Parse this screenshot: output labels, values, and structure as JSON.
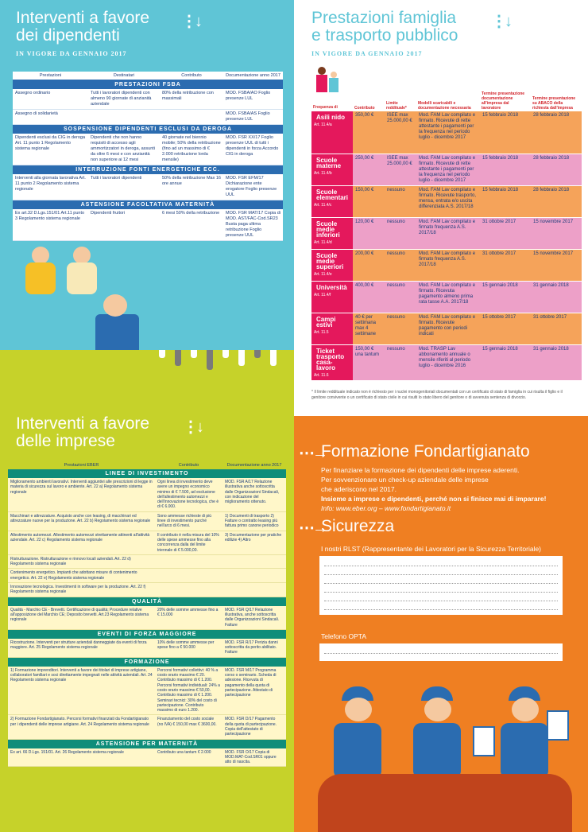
{
  "q1": {
    "title_l1": "Interventi a favore",
    "title_l2": "dei dipendenti",
    "subtitle": "IN VIGORE DA GENNAIO 2017",
    "headers": [
      "Prestazioni",
      "Destinatari",
      "Contributo",
      "Documentazione anno 2017"
    ],
    "sections": [
      {
        "name": "PRESTAZIONI FSBA",
        "rows": [
          [
            "Assegno ordinario",
            "Tutti i lavoratori dipendenti con almeno 90 giornate di anzianità aziendale",
            "80% della retribuzione con massimali",
            "MOD. FSBA/AO Foglio presenze LUL"
          ],
          [
            "Assegno di solidarietà",
            "",
            "",
            "MOD. FSBA/AS Foglio presenze LUL"
          ]
        ]
      },
      {
        "name": "SOSPENSIONE DIPENDENTI ESCLUSI DA DEROGA",
        "rows": [
          [
            "Dipendenti esclusi da CIG in deroga Art. 11 punto 1 Regolamento sistema regionale",
            "Dipendenti che non hanno requisiti di accesso agli ammortizzatori in deroga, assunti da oltre 6 mesi e con anzianità non superiore ai 12 mesi",
            "40 giornate nel biennio mobile; 50% della retribuzione (fino ad un massimo di € 2.000 retribuzione lorda mensile)",
            "MOD. FSR XX/17 Foglio presenze UUL di tutti i dipendenti in forza Accordo CIG in deroga"
          ]
        ]
      },
      {
        "name": "INTERRUZIONE FONTI ENERGETICHE ECC.",
        "rows": [
          [
            "Interventi alla giornata lavorativa Art. 11 punto 2 Regolamento sistema regionale",
            "Tutti i lavoratori dipendenti",
            "50% della retribuzione Max 16 ore annue",
            "MOD. FSR EFM/17 Dichiarazione ente erogatore Foglio presenze UUL"
          ]
        ]
      },
      {
        "name": "ASTENSIONE FACOLTATIVA MATERNITÀ",
        "rows": [
          [
            "Ex art.32 D.Lgs.151/01 Art.11 punto 3 Regolamento sistema regionale",
            "Dipendenti fruitori",
            "6 mesi 50% della retribuzione",
            "MOD. FSR MAT/17 Copia di MOD. AST/FAC-Cod.SR23 Busta paga ultima retribuzione Foglio presenze UUL"
          ]
        ]
      }
    ]
  },
  "q2": {
    "title_l1": "Prestazioni famiglia",
    "title_l2": "e trasporto pubblico",
    "subtitle": "IN VIGORE DA GENNAIO 2017",
    "headers": [
      "Frequenza di",
      "Contributo",
      "Limite reddituale*",
      "Modelli scaricabili e documentazione necessaria",
      "Termine presentazione documentazione all'impresa dal lavoratore",
      "Termine presentazione su ABACO della richiesta dall'impresa"
    ],
    "rows": [
      {
        "cat": "Asili nido",
        "art": "Art. 11.4/a",
        "contrib": "350,00 €",
        "limite": "ISEE max 25.000,00 €",
        "doc": "Mod. FAM Lav compilato e firmato. Ricevute di rette attestante i pagamenti per la frequenza nel periodo luglio - dicembre 2017",
        "t1": "15 febbraio 2018",
        "t2": "28 febbraio 2018",
        "color": "#e4185c",
        "bg": "#f5a35a"
      },
      {
        "cat": "Scuole materne",
        "art": "Art. 11.4/b",
        "contrib": "250,00 €",
        "limite": "ISEE max 25.000,00 €",
        "doc": "Mod. FAM Lav compilato e firmato. Ricevute di rette attestante i pagamenti per la frequenza nel periodo luglio - dicembre 2017",
        "t1": "15 febbraio 2018",
        "t2": "28 febbraio 2018",
        "color": "#e4185c",
        "bg": "#eda0c8"
      },
      {
        "cat": "Scuole elementari",
        "art": "Art. 11.4/c",
        "contrib": "150,00 €",
        "limite": "nessuno",
        "doc": "Mod. FAM Lav compilato e firmato. Ricevute trasporto, mensa, entrata e/o uscita differenziata A.S. 2017/18",
        "t1": "15 febbraio 2018",
        "t2": "28 febbraio 2018",
        "color": "#e4185c",
        "bg": "#f5a35a"
      },
      {
        "cat": "Scuole medie inferiori",
        "art": "Art. 11.4/d",
        "contrib": "120,00 €",
        "limite": "nessuno",
        "doc": "Mod. FAM Lav compilato e firmato frequenza A.S. 2017/18",
        "t1": "31 ottobre 2017",
        "t2": "15 novembre 2017",
        "color": "#e4185c",
        "bg": "#eda0c8"
      },
      {
        "cat": "Scuole medie superiori",
        "art": "Art. 11.4/e",
        "contrib": "200,00 €",
        "limite": "nessuno",
        "doc": "Mod. FAM Lav compilato e firmato frequenza A.S. 2017/18",
        "t1": "31 ottobre 2017",
        "t2": "15 novembre 2017",
        "color": "#e4185c",
        "bg": "#f5a35a"
      },
      {
        "cat": "Università",
        "art": "Art. 11.4/f",
        "contrib": "400,00 €",
        "limite": "nessuno",
        "doc": "Mod. FAM Lav compilato e firmato. Ricevuta pagamento almeno prima rata tasse A.A. 2017/18",
        "t1": "15 gennaio 2018",
        "t2": "31 gennaio 2018",
        "color": "#e4185c",
        "bg": "#eda0c8"
      },
      {
        "cat": "Campi estivi",
        "art": "Art. 11.5",
        "contrib": "40 € per settimana max 4 settimane",
        "limite": "nessuno",
        "doc": "Mod. FAM Lav compilato e firmato. Ricevute pagamento con periodi indicati",
        "t1": "15 ottobre 2017",
        "t2": "31 ottobre 2017",
        "color": "#e4185c",
        "bg": "#f5a35a"
      },
      {
        "cat": "Ticket trasporto casa-lavoro",
        "art": "Art. 11.6",
        "contrib": "150,00 € una tantum",
        "limite": "nessuno",
        "doc": "Mod. TRASP Lav abbonamento annuale o mensile riferiti al periodo luglio - dicembre 2016",
        "t1": "15 gennaio 2018",
        "t2": "31 gennaio 2018",
        "color": "#e4185c",
        "bg": "#eda0c8"
      }
    ],
    "note": "* Il limite reddituale indicato non è richiesto per i nuclei monogenitoriali documentati con un certificato di stato di famiglia in cui risulta il figlio e il genitore convivente o un certificato di stato civile in cui risulti lo stato libero del genitore o di avvenuta sentenza di divorzio."
  },
  "q3": {
    "title_l1": "Interventi a favore",
    "title_l2": "delle imprese",
    "headers": [
      "Prestazioni EBER",
      "Contributo",
      "Documentazione anno 2017"
    ],
    "sections": [
      {
        "name": "LINEE DI INVESTIMENTO",
        "rows": [
          [
            "Miglioramento ambienti lavorativi. Interventi aggiuntivi alle prescrizioni di legge in materia di sicurezza sul lavoro e ambiente. Art. 22 a) Regolamento sistema regionale",
            "Ogni linea di investimento deve avere un impegno economico minimo di € 7.500, ad esclusione dell'allestimento automezzi e dell'innovazione tecnologica, che è di € 6.000.",
            "MOD. FSR A/17 Relazione illustrativa anche sottoscritta dalle Organizzazioni Sindacali, con indicazione del miglioramento ottenuto."
          ],
          [
            "Macchinari e attrezzature. Acquisto anche con leasing, di macchinari ed attrezzature nuove per la produzione. Art. 22 b) Regolamento sistema regionale",
            "Sono ammesse richieste di più linee di investimento purché nell'arco di 6 mesi.",
            "1) Documenti di trasporto 2) Fatture o contratto leasing più fattura primo canone periodico"
          ],
          [
            "Allestimento automezzi. Allestimento automezzi strettamente attinenti all'attività aziendale. Art. 22 c) Regolamento sistema regionale",
            "Il contributo è nella misura del 10% delle spese ammesse fino alla concorrenza dalla del limite triennale di € 5.000,00.",
            "3) Documentazione per pratiche edilizie 4) Altro"
          ],
          [
            "Ristrutturazione. Ristrutturazione e rinnovo locali aziendali. Art. 22 d) Regolamento sistema regionale",
            "",
            ""
          ],
          [
            "Contenimento energetico. Impianti che adottano misure di contenimento energetico. Art. 22 e) Regolamento sistema regionale",
            "",
            ""
          ],
          [
            "Innovazione tecnologica. Investimenti in software per la produzione. Art. 22 f) Regolamento sistema regionale",
            "",
            ""
          ]
        ]
      },
      {
        "name": "QUALITÀ",
        "rows": [
          [
            "Qualità - Marchio CE - Brevetti. Certificazione di qualità; Procedure relative all'apposizione del Marchio CE; Deposito brevetti. Art.23 Regolamento sistema regionale",
            "20% delle somme ammesse fino a € 15.000",
            "MOD. FSR Q/17 Relazione illustrativa, anche sottoscritta dalle Organizzazioni Sindacali. Fatture"
          ]
        ]
      },
      {
        "name": "EVENTI DI FORZA MAGGIORE",
        "rows": [
          [
            "Ricostruzione. Interventi per strutture aziendali danneggiate da eventi di forza maggiore. Art. 25 Regolamento sistema regionale",
            "10% delle somme ammesse per spese fino a € 50.000",
            "MOD. FSR R/17 Perizia danni sottoscritta da perito abilitato. Fatture"
          ]
        ]
      },
      {
        "name": "FORMAZIONE",
        "rows": [
          [
            "1) Formazione imprenditori. Interventi a favore dei titolari di imprese artigiane, collaboratori familiari e soci direttamente impegnati nelle attività aziendali. Art. 24 Regolamento sistema regionale",
            "Percorsi formativi collettivi: 40 % a costo orario massimo € 20. Contributo massimo di € 1.200. Percorsi formativi individuali: 24% a costo orario massimo € 50,00. Contributo massimo di € 1.200. Seminari tecnici: 30% del costo di partecipazione. Contributo massimo di euro 1.200.",
            "MOD. FSR M/17 Programma corso o seminario. Scheda di adesione. Ricevuta di pagamento della quota di partecipazione. Attestato di partecipazione"
          ],
          [
            "2) Formazione Fondartigianato. Percorsi formativi finanziati da Fondartigianato per i dipendenti delle imprese artigiane. Art. 24 Regolamento sistema regionale",
            "Finanziamento del costo sociale (no IVA) € 150,00 max € 3600,00.",
            "MOD. FSR D/17 Pagamento della quota di partecipazione. Copia dell'attestato di partecipazione"
          ]
        ]
      },
      {
        "name": "ASTENSIONE PER MATERNITÀ",
        "rows": [
          [
            "Ex art. 66 D.Lgs. 151/01. Art. 26 Regolamento sistema regionale",
            "Contributo una tantum € 2.000",
            "MOD. FSR O/17 Copia di MOD.MAT-Cod.SR01 oppure atto di nascita."
          ]
        ]
      }
    ]
  },
  "q4": {
    "title1": "Formazione Fondartigianato",
    "lines": [
      "Per finanziare la formazione dei dipendenti delle imprese aderenti.",
      "Per sovvenzionare un check-up aziendale delle imprese",
      "che aderiscono nel 2017."
    ],
    "bold": "Insieme a imprese e dipendenti, perché non si finisce mai di imparare!",
    "info": "Info: www.eber.org – www.fondartigianato.it",
    "title2": "Sicurezza",
    "rlst_label": "I nostri RLST (Rappresentante dei Lavoratori per la Sicurezza Territoriale)",
    "opta_label": "Telefono OPTA"
  }
}
